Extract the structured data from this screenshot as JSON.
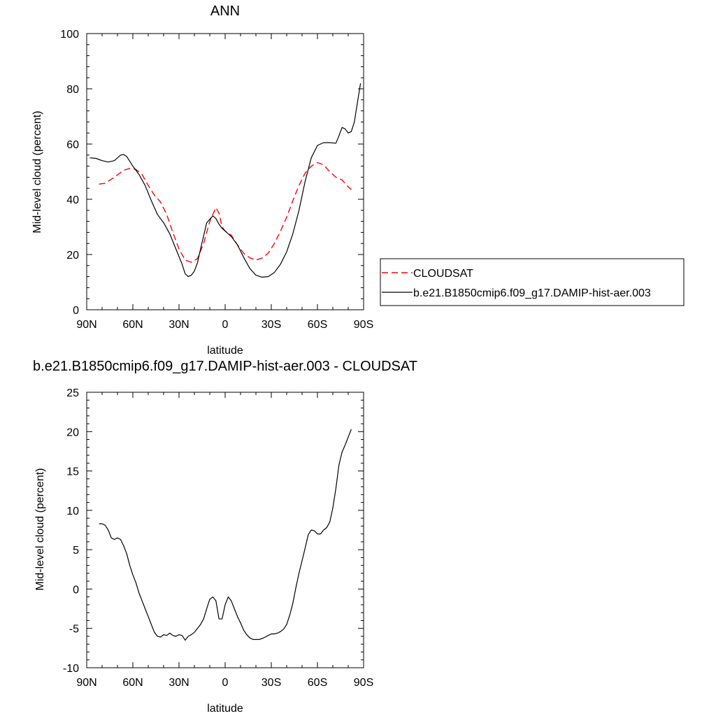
{
  "chart_data": [
    {
      "type": "line",
      "title": "ANN",
      "xlabel": "latitude",
      "ylabel": "Mid-level cloud (percent)",
      "xlim": [
        90,
        -90
      ],
      "ylim": [
        0,
        100
      ],
      "x_ticks": [
        90,
        60,
        30,
        0,
        -30,
        -60,
        -90
      ],
      "x_tick_labels": [
        "90N",
        "60N",
        "30N",
        "0",
        "30S",
        "60S",
        "90S"
      ],
      "y_ticks": [
        0,
        20,
        40,
        60,
        80,
        100
      ],
      "y_tick_labels": [
        "0",
        "20",
        "40",
        "60",
        "80",
        "100"
      ],
      "grid": false,
      "legend_placement": "right",
      "series": [
        {
          "name": "CLOUDSAT",
          "color": "#ff0000",
          "dash": "dashed",
          "x": [
            82,
            78,
            72,
            66,
            62,
            58,
            54,
            50,
            46,
            42,
            38,
            34,
            30,
            26,
            22,
            18,
            14,
            10,
            6,
            4,
            2,
            0,
            -4,
            -8,
            -12,
            -16,
            -20,
            -24,
            -28,
            -32,
            -36,
            -40,
            -44,
            -48,
            -52,
            -56,
            -60,
            -64,
            -68,
            -72,
            -76,
            -80,
            -82
          ],
          "y": [
            45.5,
            45.8,
            48,
            50.5,
            51.2,
            50.8,
            49,
            45,
            41.5,
            39,
            34.5,
            28,
            22,
            18,
            17.2,
            18.5,
            24,
            32,
            37,
            35,
            30,
            28.5,
            27,
            23.5,
            20.5,
            18.8,
            18,
            18.7,
            20.5,
            24,
            28.5,
            33.5,
            39.5,
            45,
            49.5,
            52,
            53.3,
            52.5,
            50,
            48,
            47,
            44.5,
            43.5
          ]
        },
        {
          "name": "b.e21.B1850cmip6.f09_g17.DAMIP-hist-aer.003",
          "color": "#000000",
          "dash": "solid",
          "x": [
            88,
            84,
            80,
            76,
            72,
            68,
            66,
            64,
            60,
            56,
            52,
            48,
            44,
            40,
            36,
            32,
            28,
            26,
            24,
            22,
            20,
            18,
            16,
            12,
            8,
            6,
            4,
            2,
            0,
            -4,
            -8,
            -12,
            -16,
            -20,
            -24,
            -28,
            -32,
            -36,
            -40,
            -44,
            -48,
            -52,
            -56,
            -60,
            -64,
            -68,
            -72,
            -74,
            -76,
            -78,
            -80,
            -82,
            -84,
            -86,
            -88
          ],
          "y": [
            55,
            54.8,
            54,
            53.5,
            54,
            56,
            56.2,
            55.5,
            52,
            49,
            45,
            39.5,
            34.5,
            31.5,
            27.5,
            22,
            16.5,
            13,
            12,
            12.5,
            14,
            17,
            22,
            31.5,
            34,
            33,
            31,
            29.5,
            28.5,
            26.5,
            23.5,
            19,
            15,
            12.5,
            11.8,
            12,
            13.5,
            16.5,
            21,
            27.5,
            36,
            46.5,
            55,
            59.5,
            60.5,
            60.5,
            60.3,
            63,
            66,
            65.5,
            64,
            64.5,
            68,
            75,
            82
          ]
        }
      ]
    },
    {
      "type": "line",
      "title": "b.e21.B1850cmip6.f09_g17.DAMIP-hist-aer.003 - CLOUDSAT",
      "xlabel": "latitude",
      "ylabel": "Mid-level cloud (percent)",
      "xlim": [
        90,
        -90
      ],
      "ylim": [
        -10,
        25
      ],
      "x_ticks": [
        90,
        60,
        30,
        0,
        -30,
        -60,
        -90
      ],
      "x_tick_labels": [
        "90N",
        "60N",
        "30N",
        "0",
        "30S",
        "60S",
        "90S"
      ],
      "y_ticks": [
        -10,
        -5,
        0,
        5,
        10,
        15,
        20,
        25
      ],
      "y_tick_labels": [
        "-10",
        "-5",
        "0",
        "5",
        "10",
        "15",
        "20",
        "25"
      ],
      "grid": false,
      "series": [
        {
          "color": "#000000",
          "dash": "solid",
          "x": [
            82,
            80,
            78,
            76,
            74,
            72,
            70,
            68,
            66,
            64,
            62,
            60,
            58,
            56,
            54,
            52,
            50,
            48,
            46,
            44,
            42,
            40,
            38,
            36,
            34,
            32,
            30,
            28,
            26,
            24,
            22,
            20,
            18,
            16,
            14,
            12,
            10,
            8,
            6,
            4,
            2,
            0,
            -2,
            -4,
            -6,
            -8,
            -10,
            -12,
            -14,
            -16,
            -18,
            -20,
            -22,
            -24,
            -26,
            -28,
            -30,
            -32,
            -34,
            -36,
            -38,
            -40,
            -42,
            -44,
            -46,
            -48,
            -50,
            -52,
            -54,
            -56,
            -58,
            -60,
            -62,
            -64,
            -66,
            -68,
            -70,
            -72,
            -74,
            -76,
            -78,
            -80,
            -82
          ],
          "y": [
            8.3,
            8.3,
            8.1,
            7.5,
            6.5,
            6.3,
            6.5,
            6.3,
            5.5,
            4.5,
            3,
            1.8,
            0.8,
            -0.5,
            -1.5,
            -2.5,
            -3.5,
            -4.5,
            -5.5,
            -6,
            -6.1,
            -5.8,
            -5.9,
            -5.6,
            -5.9,
            -6,
            -5.8,
            -5.9,
            -6.5,
            -6,
            -5.8,
            -5.5,
            -5,
            -4.5,
            -3.8,
            -2.5,
            -1.3,
            -1,
            -1.5,
            -3.8,
            -3.8,
            -2,
            -1,
            -1.5,
            -2.5,
            -3.5,
            -4.3,
            -5.2,
            -5.8,
            -6.2,
            -6.4,
            -6.4,
            -6.4,
            -6.3,
            -6.1,
            -5.9,
            -5.7,
            -5.7,
            -5.6,
            -5.4,
            -5.1,
            -4.5,
            -3.3,
            -1.8,
            0.2,
            2,
            3.6,
            5.2,
            6.9,
            7.5,
            7.4,
            7,
            7,
            7.5,
            7.8,
            8.5,
            10.3,
            12.8,
            15.8,
            17.4,
            18.3,
            19.3,
            20.3
          ]
        }
      ]
    }
  ]
}
